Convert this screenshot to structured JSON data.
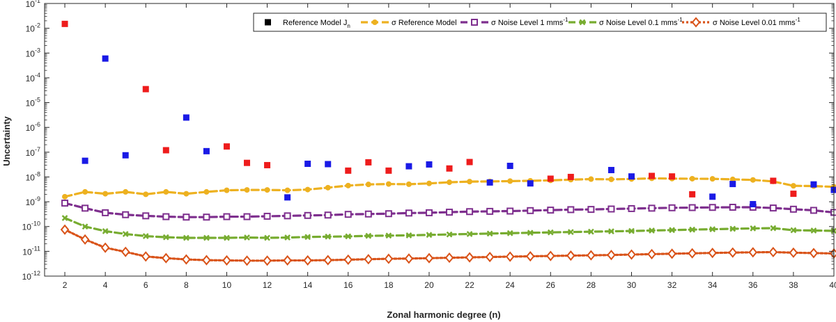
{
  "chart_data": {
    "type": "scatter",
    "xlabel": "Zonal harmonic degree (n)",
    "ylabel": "Uncertainty",
    "xlim": [
      1,
      40
    ],
    "ylim_log10": [
      -12,
      -1
    ],
    "yscale": "log",
    "x_ticks": [
      2,
      4,
      6,
      8,
      10,
      12,
      14,
      16,
      18,
      20,
      22,
      24,
      26,
      28,
      30,
      32,
      34,
      36,
      38,
      40
    ],
    "y_tick_exponents": [
      -12,
      -11,
      -10,
      -9,
      -8,
      -7,
      -6,
      -5,
      -4,
      -3,
      -2,
      -1
    ],
    "y_tick_base": "10",
    "grid": false,
    "legend": {
      "position": "top-right",
      "reference_label": "Reference Model J",
      "reference_sub": "n"
    },
    "reference_model": {
      "name": "Reference Model Jn",
      "colors": {
        "positive": "#ee1c1c",
        "negative": "#1a1ae6"
      },
      "points": [
        {
          "n": 2,
          "value": 0.015,
          "sign": "positive"
        },
        {
          "n": 3,
          "value": 4.5e-08,
          "sign": "negative"
        },
        {
          "n": 4,
          "value": 0.0006,
          "sign": "negative"
        },
        {
          "n": 5,
          "value": 7.5e-08,
          "sign": "negative"
        },
        {
          "n": 6,
          "value": 3.5e-05,
          "sign": "positive"
        },
        {
          "n": 7,
          "value": 1.2e-07,
          "sign": "positive"
        },
        {
          "n": 8,
          "value": 2.5e-06,
          "sign": "negative"
        },
        {
          "n": 9,
          "value": 1.1e-07,
          "sign": "negative"
        },
        {
          "n": 10,
          "value": 1.7e-07,
          "sign": "positive"
        },
        {
          "n": 11,
          "value": 3.7e-08,
          "sign": "positive"
        },
        {
          "n": 12,
          "value": 3e-08,
          "sign": "positive"
        },
        {
          "n": 13,
          "value": 1.5e-09,
          "sign": "negative"
        },
        {
          "n": 14,
          "value": 3.4e-08,
          "sign": "negative"
        },
        {
          "n": 15,
          "value": 3.3e-08,
          "sign": "negative"
        },
        {
          "n": 16,
          "value": 1.8e-08,
          "sign": "positive"
        },
        {
          "n": 17,
          "value": 3.9e-08,
          "sign": "positive"
        },
        {
          "n": 18,
          "value": 1.8e-08,
          "sign": "positive"
        },
        {
          "n": 19,
          "value": 2.7e-08,
          "sign": "negative"
        },
        {
          "n": 20,
          "value": 3.2e-08,
          "sign": "negative"
        },
        {
          "n": 21,
          "value": 2.2e-08,
          "sign": "positive"
        },
        {
          "n": 22,
          "value": 4e-08,
          "sign": "positive"
        },
        {
          "n": 23,
          "value": 6e-09,
          "sign": "negative"
        },
        {
          "n": 24,
          "value": 2.8e-08,
          "sign": "negative"
        },
        {
          "n": 25,
          "value": 5.5e-09,
          "sign": "negative"
        },
        {
          "n": 26,
          "value": 8.5e-09,
          "sign": "positive"
        },
        {
          "n": 27,
          "value": 1e-08,
          "sign": "positive"
        },
        {
          "n": 29,
          "value": 1.9e-08,
          "sign": "negative"
        },
        {
          "n": 30,
          "value": 1.05e-08,
          "sign": "negative"
        },
        {
          "n": 31,
          "value": 1.1e-08,
          "sign": "positive"
        },
        {
          "n": 32,
          "value": 1.05e-08,
          "sign": "positive"
        },
        {
          "n": 33,
          "value": 2e-09,
          "sign": "positive"
        },
        {
          "n": 34,
          "value": 1.6e-09,
          "sign": "negative"
        },
        {
          "n": 35,
          "value": 5.2e-09,
          "sign": "negative"
        },
        {
          "n": 36,
          "value": 8e-10,
          "sign": "negative"
        },
        {
          "n": 37,
          "value": 7e-09,
          "sign": "positive"
        },
        {
          "n": 38,
          "value": 2.1e-09,
          "sign": "positive"
        },
        {
          "n": 39,
          "value": 5e-09,
          "sign": "negative"
        },
        {
          "n": 40,
          "value": 3e-09,
          "sign": "negative"
        }
      ]
    },
    "series": [
      {
        "name": "σ Reference Model",
        "color": "#edb120",
        "marker": "circle",
        "dash": "dashed",
        "values": [
          {
            "n": 2,
            "v": 1.6e-09
          },
          {
            "n": 3,
            "v": 2.5e-09
          },
          {
            "n": 4,
            "v": 2.1e-09
          },
          {
            "n": 5,
            "v": 2.5e-09
          },
          {
            "n": 6,
            "v": 2e-09
          },
          {
            "n": 7,
            "v": 2.5e-09
          },
          {
            "n": 8,
            "v": 2.1e-09
          },
          {
            "n": 9,
            "v": 2.5e-09
          },
          {
            "n": 10,
            "v": 2.9e-09
          },
          {
            "n": 11,
            "v": 3e-09
          },
          {
            "n": 12,
            "v": 3e-09
          },
          {
            "n": 13,
            "v": 2.9e-09
          },
          {
            "n": 14,
            "v": 3.1e-09
          },
          {
            "n": 15,
            "v": 3.7e-09
          },
          {
            "n": 16,
            "v": 4.5e-09
          },
          {
            "n": 17,
            "v": 5e-09
          },
          {
            "n": 18,
            "v": 5.2e-09
          },
          {
            "n": 19,
            "v": 5.1e-09
          },
          {
            "n": 20,
            "v": 5.5e-09
          },
          {
            "n": 21,
            "v": 6.1e-09
          },
          {
            "n": 22,
            "v": 6.5e-09
          },
          {
            "n": 23,
            "v": 6.6e-09
          },
          {
            "n": 24,
            "v": 6.8e-09
          },
          {
            "n": 25,
            "v": 7e-09
          },
          {
            "n": 26,
            "v": 7.3e-09
          },
          {
            "n": 27,
            "v": 7.8e-09
          },
          {
            "n": 28,
            "v": 8.2e-09
          },
          {
            "n": 29,
            "v": 8e-09
          },
          {
            "n": 30,
            "v": 8.3e-09
          },
          {
            "n": 31,
            "v": 8.8e-09
          },
          {
            "n": 32,
            "v": 8.6e-09
          },
          {
            "n": 33,
            "v": 8.5e-09
          },
          {
            "n": 34,
            "v": 8.4e-09
          },
          {
            "n": 35,
            "v": 8e-09
          },
          {
            "n": 36,
            "v": 7.6e-09
          },
          {
            "n": 37,
            "v": 6.6e-09
          },
          {
            "n": 38,
            "v": 4.4e-09
          },
          {
            "n": 39,
            "v": 4.3e-09
          },
          {
            "n": 40,
            "v": 4e-09
          }
        ]
      },
      {
        "name": "σ Noise Level 1 mms",
        "unit_exp": "-1",
        "color": "#7e2f8e",
        "marker": "square",
        "dash": "dashed",
        "values": [
          {
            "n": 2,
            "v": 8.8e-10
          },
          {
            "n": 3,
            "v": 5.5e-10
          },
          {
            "n": 4,
            "v": 3.6e-10
          },
          {
            "n": 5,
            "v": 3e-10
          },
          {
            "n": 6,
            "v": 2.7e-10
          },
          {
            "n": 7,
            "v": 2.5e-10
          },
          {
            "n": 8,
            "v": 2.4e-10
          },
          {
            "n": 9,
            "v": 2.4e-10
          },
          {
            "n": 10,
            "v": 2.5e-10
          },
          {
            "n": 11,
            "v": 2.5e-10
          },
          {
            "n": 12,
            "v": 2.6e-10
          },
          {
            "n": 13,
            "v": 2.7e-10
          },
          {
            "n": 14,
            "v": 2.8e-10
          },
          {
            "n": 15,
            "v": 2.9e-10
          },
          {
            "n": 16,
            "v": 3.1e-10
          },
          {
            "n": 17,
            "v": 3.2e-10
          },
          {
            "n": 18,
            "v": 3.3e-10
          },
          {
            "n": 19,
            "v": 3.5e-10
          },
          {
            "n": 20,
            "v": 3.6e-10
          },
          {
            "n": 21,
            "v": 3.8e-10
          },
          {
            "n": 22,
            "v": 4e-10
          },
          {
            "n": 23,
            "v": 4.1e-10
          },
          {
            "n": 24,
            "v": 4.2e-10
          },
          {
            "n": 25,
            "v": 4.4e-10
          },
          {
            "n": 26,
            "v": 4.6e-10
          },
          {
            "n": 27,
            "v": 4.8e-10
          },
          {
            "n": 28,
            "v": 4.9e-10
          },
          {
            "n": 29,
            "v": 5.1e-10
          },
          {
            "n": 30,
            "v": 5.3e-10
          },
          {
            "n": 31,
            "v": 5.5e-10
          },
          {
            "n": 32,
            "v": 5.7e-10
          },
          {
            "n": 33,
            "v": 5.8e-10
          },
          {
            "n": 34,
            "v": 5.9e-10
          },
          {
            "n": 35,
            "v": 6e-10
          },
          {
            "n": 36,
            "v": 6e-10
          },
          {
            "n": 37,
            "v": 5.6e-10
          },
          {
            "n": 38,
            "v": 5e-10
          },
          {
            "n": 39,
            "v": 4.5e-10
          },
          {
            "n": 40,
            "v": 3.7e-10
          }
        ]
      },
      {
        "name": "σ Noise Level 0.1 mms",
        "unit_exp": "-1",
        "color": "#77ac30",
        "marker": "x",
        "dash": "dashed",
        "values": [
          {
            "n": 2,
            "v": 2.2e-10
          },
          {
            "n": 3,
            "v": 1e-10
          },
          {
            "n": 4,
            "v": 6.5e-11
          },
          {
            "n": 5,
            "v": 5e-11
          },
          {
            "n": 6,
            "v": 4.1e-11
          },
          {
            "n": 7,
            "v": 3.7e-11
          },
          {
            "n": 8,
            "v": 3.5e-11
          },
          {
            "n": 9,
            "v": 3.5e-11
          },
          {
            "n": 10,
            "v": 3.5e-11
          },
          {
            "n": 11,
            "v": 3.6e-11
          },
          {
            "n": 12,
            "v": 3.5e-11
          },
          {
            "n": 13,
            "v": 3.6e-11
          },
          {
            "n": 14,
            "v": 3.8e-11
          },
          {
            "n": 15,
            "v": 3.9e-11
          },
          {
            "n": 16,
            "v": 4e-11
          },
          {
            "n": 17,
            "v": 4.2e-11
          },
          {
            "n": 18,
            "v": 4.3e-11
          },
          {
            "n": 19,
            "v": 4.4e-11
          },
          {
            "n": 20,
            "v": 4.6e-11
          },
          {
            "n": 21,
            "v": 4.8e-11
          },
          {
            "n": 22,
            "v": 5e-11
          },
          {
            "n": 23,
            "v": 5.2e-11
          },
          {
            "n": 24,
            "v": 5.4e-11
          },
          {
            "n": 25,
            "v": 5.6e-11
          },
          {
            "n": 26,
            "v": 5.8e-11
          },
          {
            "n": 27,
            "v": 6e-11
          },
          {
            "n": 28,
            "v": 6.2e-11
          },
          {
            "n": 29,
            "v": 6.4e-11
          },
          {
            "n": 30,
            "v": 6.6e-11
          },
          {
            "n": 31,
            "v": 6.9e-11
          },
          {
            "n": 32,
            "v": 7.2e-11
          },
          {
            "n": 33,
            "v": 7.5e-11
          },
          {
            "n": 34,
            "v": 7.8e-11
          },
          {
            "n": 35,
            "v": 8.1e-11
          },
          {
            "n": 36,
            "v": 8.4e-11
          },
          {
            "n": 37,
            "v": 8.6e-11
          },
          {
            "n": 38,
            "v": 7.1e-11
          },
          {
            "n": 39,
            "v": 6.9e-11
          },
          {
            "n": 40,
            "v": 6.7e-11
          }
        ]
      },
      {
        "name": "σ Noise Level 0.01 mms",
        "unit_exp": "-1",
        "color": "#d95319",
        "marker": "diamond",
        "dash": "dotted",
        "values": [
          {
            "n": 2,
            "v": 7.5e-11
          },
          {
            "n": 3,
            "v": 3e-11
          },
          {
            "n": 4,
            "v": 1.4e-11
          },
          {
            "n": 5,
            "v": 9.5e-12
          },
          {
            "n": 6,
            "v": 6.2e-12
          },
          {
            "n": 7,
            "v": 5.3e-12
          },
          {
            "n": 8,
            "v": 4.7e-12
          },
          {
            "n": 9,
            "v": 4.4e-12
          },
          {
            "n": 10,
            "v": 4.3e-12
          },
          {
            "n": 11,
            "v": 4.2e-12
          },
          {
            "n": 12,
            "v": 4.2e-12
          },
          {
            "n": 13,
            "v": 4.3e-12
          },
          {
            "n": 14,
            "v": 4.3e-12
          },
          {
            "n": 15,
            "v": 4.4e-12
          },
          {
            "n": 16,
            "v": 4.6e-12
          },
          {
            "n": 17,
            "v": 4.8e-12
          },
          {
            "n": 18,
            "v": 5e-12
          },
          {
            "n": 19,
            "v": 5.1e-12
          },
          {
            "n": 20,
            "v": 5.3e-12
          },
          {
            "n": 21,
            "v": 5.5e-12
          },
          {
            "n": 22,
            "v": 5.7e-12
          },
          {
            "n": 23,
            "v": 5.9e-12
          },
          {
            "n": 24,
            "v": 6.1e-12
          },
          {
            "n": 25,
            "v": 6.3e-12
          },
          {
            "n": 26,
            "v": 6.5e-12
          },
          {
            "n": 27,
            "v": 6.7e-12
          },
          {
            "n": 28,
            "v": 6.9e-12
          },
          {
            "n": 29,
            "v": 7.1e-12
          },
          {
            "n": 30,
            "v": 7.4e-12
          },
          {
            "n": 31,
            "v": 7.7e-12
          },
          {
            "n": 32,
            "v": 8e-12
          },
          {
            "n": 33,
            "v": 8.3e-12
          },
          {
            "n": 34,
            "v": 8.6e-12
          },
          {
            "n": 35,
            "v": 8.9e-12
          },
          {
            "n": 36,
            "v": 9.1e-12
          },
          {
            "n": 37,
            "v": 9.3e-12
          },
          {
            "n": 38,
            "v": 8.8e-12
          },
          {
            "n": 39,
            "v": 8.5e-12
          },
          {
            "n": 40,
            "v": 8.2e-12
          }
        ]
      }
    ]
  }
}
